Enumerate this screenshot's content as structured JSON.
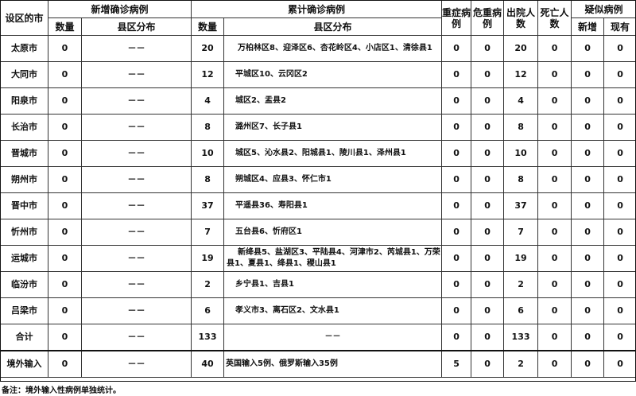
{
  "headers": {
    "city": "设区的市",
    "new_confirmed": "新增确诊病例",
    "cumulative": "累计确诊病例",
    "severe": "重症病例",
    "critical": "危重病例",
    "discharged": "出院人数",
    "deaths": "死亡人数",
    "suspected": "疑似病例",
    "count": "数量",
    "district": "县区分布",
    "sus_new": "新增",
    "sus_current": "现有"
  },
  "rows": [
    {
      "city": "太原市",
      "new": "0",
      "new_dist": "－－",
      "total": "20",
      "dist": "万柏林区8、迎泽区6、杏花岭区4、小店区1、清徐县1",
      "severe": "0",
      "critical": "0",
      "discharged": "20",
      "deaths": "0",
      "sus_new": "0",
      "sus_cur": "0"
    },
    {
      "city": "大同市",
      "new": "0",
      "new_dist": "－－",
      "total": "12",
      "dist": "平城区10、云冈区2",
      "severe": "0",
      "critical": "0",
      "discharged": "12",
      "deaths": "0",
      "sus_new": "0",
      "sus_cur": "0"
    },
    {
      "city": "阳泉市",
      "new": "0",
      "new_dist": "－－",
      "total": "4",
      "dist": "城区2、盂县2",
      "severe": "0",
      "critical": "0",
      "discharged": "4",
      "deaths": "0",
      "sus_new": "0",
      "sus_cur": "0"
    },
    {
      "city": "长治市",
      "new": "0",
      "new_dist": "－－",
      "total": "8",
      "dist": "潞州区7、长子县1",
      "severe": "0",
      "critical": "0",
      "discharged": "8",
      "deaths": "0",
      "sus_new": "0",
      "sus_cur": "0"
    },
    {
      "city": "晋城市",
      "new": "0",
      "new_dist": "－－",
      "total": "10",
      "dist": "城区5、沁水县2、阳城县1、陵川县1、泽州县1",
      "severe": "0",
      "critical": "0",
      "discharged": "10",
      "deaths": "0",
      "sus_new": "0",
      "sus_cur": "0"
    },
    {
      "city": "朔州市",
      "new": "0",
      "new_dist": "－－",
      "total": "8",
      "dist": "朔城区4、应县3、怀仁市1",
      "severe": "0",
      "critical": "0",
      "discharged": "8",
      "deaths": "0",
      "sus_new": "0",
      "sus_cur": "0"
    },
    {
      "city": "晋中市",
      "new": "0",
      "new_dist": "－－",
      "total": "37",
      "dist": "平遥县36、寿阳县1",
      "severe": "0",
      "critical": "0",
      "discharged": "37",
      "deaths": "0",
      "sus_new": "0",
      "sus_cur": "0"
    },
    {
      "city": "忻州市",
      "new": "0",
      "new_dist": "－－",
      "total": "7",
      "dist": "五台县6、忻府区1",
      "severe": "0",
      "critical": "0",
      "discharged": "7",
      "deaths": "0",
      "sus_new": "0",
      "sus_cur": "0"
    },
    {
      "city": "运城市",
      "new": "0",
      "new_dist": "－－",
      "total": "19",
      "dist": "新绛县5、盐湖区3、平陆县4、河津市2、芮城县1、万荣县1、夏县1、绛县1、稷山县1",
      "severe": "0",
      "critical": "0",
      "discharged": "19",
      "deaths": "0",
      "sus_new": "0",
      "sus_cur": "0"
    },
    {
      "city": "临汾市",
      "new": "0",
      "new_dist": "－－",
      "total": "2",
      "dist": "乡宁县1、吉县1",
      "severe": "0",
      "critical": "0",
      "discharged": "2",
      "deaths": "0",
      "sus_new": "0",
      "sus_cur": "0"
    },
    {
      "city": "吕梁市",
      "new": "0",
      "new_dist": "－－",
      "total": "6",
      "dist": "孝义市3、离石区2、文水县1",
      "severe": "0",
      "critical": "0",
      "discharged": "6",
      "deaths": "0",
      "sus_new": "0",
      "sus_cur": "0"
    },
    {
      "city": "合计",
      "new": "0",
      "new_dist": "－－",
      "total": "133",
      "dist": "－－",
      "severe": "0",
      "critical": "0",
      "discharged": "133",
      "deaths": "0",
      "sus_new": "0",
      "sus_cur": "0"
    },
    {
      "city": "境外输入",
      "new": "0",
      "new_dist": "－－",
      "total": "40",
      "dist": "英国输入5例、俄罗斯输入35例",
      "severe": "5",
      "critical": "0",
      "discharged": "2",
      "deaths": "0",
      "sus_new": "0",
      "sus_cur": "0"
    }
  ],
  "note": "备注：境外输入性病例单独统计。"
}
